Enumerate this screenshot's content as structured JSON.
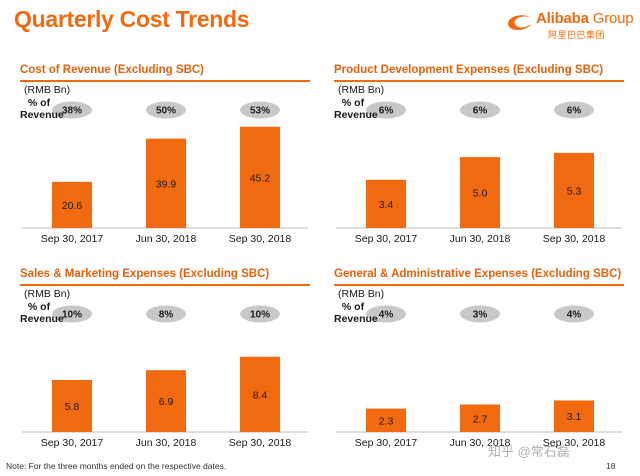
{
  "page": {
    "title": "Quarterly Cost Trends",
    "logo_text": "Alibaba",
    "logo_group": "Group",
    "logo_cn": "阿里巴巴集团",
    "footnote": "Note:  For the three months ended on the respective dates.",
    "page_number": "18",
    "watermark": "知乎 @常石磊",
    "accent_color": "#f26a10"
  },
  "chart_data": [
    {
      "type": "bar",
      "title": "Cost of Revenue (Excluding SBC)",
      "unit": "(RMB Bn)",
      "pct_label": [
        "% of",
        "Revenue"
      ],
      "categories": [
        "Sep 30, 2017",
        "Jun 30, 2018",
        "Sep 30, 2018"
      ],
      "values": [
        20.6,
        39.9,
        45.2
      ],
      "value_labels": [
        "20.6",
        "39.9",
        "45.2"
      ],
      "pct_of_revenue": [
        "38%",
        "50%",
        "53%"
      ],
      "ylim": [
        0,
        50
      ],
      "bar_color": "#f26a10",
      "badge_color": "#c8c8c8"
    },
    {
      "type": "bar",
      "title": "Product Development Expenses (Excluding SBC)",
      "unit": "(RMB Bn)",
      "pct_label": [
        "% of",
        "Revenue"
      ],
      "categories": [
        "Sep 30, 2017",
        "Jun 30, 2018",
        "Sep 30, 2018"
      ],
      "values": [
        3.4,
        5.0,
        5.3
      ],
      "value_labels": [
        "3.4",
        "5.0",
        "5.3"
      ],
      "pct_of_revenue": [
        "6%",
        "6%",
        "6%"
      ],
      "ylim": [
        0,
        7.9
      ],
      "bar_color": "#f26a10",
      "badge_color": "#c8c8c8"
    },
    {
      "type": "bar",
      "title": "Sales & Marketing Expenses (Excluding SBC)",
      "unit": "(RMB Bn)",
      "pct_label": [
        "% of",
        "Revenue"
      ],
      "categories": [
        "Sep 30, 2017",
        "Jun 30, 2018",
        "Sep 30, 2018"
      ],
      "values": [
        5.8,
        6.9,
        8.4
      ],
      "value_labels": [
        "5.8",
        "6.9",
        "8.4"
      ],
      "pct_of_revenue": [
        "10%",
        "8%",
        "10%"
      ],
      "ylim": [
        0,
        12.5
      ],
      "bar_color": "#f26a10",
      "badge_color": "#c8c8c8"
    },
    {
      "type": "bar",
      "title": "General & Administrative Expenses (Excluding SBC)",
      "unit": "(RMB Bn)",
      "pct_label": [
        "% of",
        "Revenue"
      ],
      "categories": [
        "Sep 30, 2017",
        "Jun 30, 2018",
        "Sep 30, 2018"
      ],
      "values": [
        2.3,
        2.7,
        3.1
      ],
      "value_labels": [
        "2.3",
        "2.7",
        "3.1"
      ],
      "pct_of_revenue": [
        "4%",
        "3%",
        "4%"
      ],
      "ylim": [
        0,
        11
      ],
      "bar_color": "#f26a10",
      "badge_color": "#c8c8c8"
    }
  ]
}
